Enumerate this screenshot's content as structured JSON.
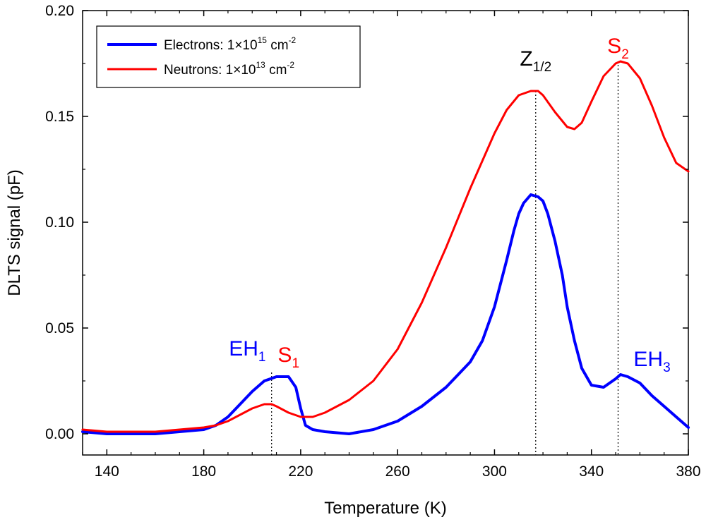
{
  "chart_data": {
    "type": "line",
    "xlabel": "Temperature (K)",
    "ylabel": "DLTS signal (pF)",
    "xlim": [
      130,
      380
    ],
    "ylim": [
      -0.01,
      0.2
    ],
    "xticks": [
      140,
      180,
      220,
      260,
      300,
      340,
      380
    ],
    "xtick_labels": [
      "140",
      "180",
      "220",
      "260",
      "300",
      "340",
      "380"
    ],
    "yticks": [
      0.0,
      0.05,
      0.1,
      0.15,
      0.2
    ],
    "ytick_labels": [
      "0.00",
      "0.05",
      "0.10",
      "0.15",
      "0.20"
    ],
    "grid": false,
    "legend_position": "top-left",
    "series": [
      {
        "name_text": "Electrons: 1×10",
        "name_sup": "15",
        "name_unit": " cm",
        "name_unit_sup": "-2",
        "color": "#0000ff",
        "x": [
          130,
          140,
          150,
          160,
          170,
          180,
          185,
          190,
          195,
          200,
          205,
          210,
          215,
          218,
          220,
          222,
          225,
          230,
          240,
          250,
          260,
          270,
          280,
          285,
          290,
          295,
          300,
          305,
          308,
          310,
          312,
          315,
          318,
          320,
          322,
          325,
          328,
          330,
          333,
          336,
          340,
          345,
          350,
          352,
          355,
          360,
          365,
          370,
          375,
          380
        ],
        "y": [
          0.001,
          0.0,
          0.0,
          0.0,
          0.001,
          0.002,
          0.004,
          0.008,
          0.014,
          0.02,
          0.025,
          0.027,
          0.027,
          0.022,
          0.012,
          0.004,
          0.002,
          0.001,
          0.0,
          0.002,
          0.006,
          0.013,
          0.022,
          0.028,
          0.034,
          0.044,
          0.06,
          0.082,
          0.096,
          0.104,
          0.109,
          0.113,
          0.112,
          0.11,
          0.104,
          0.091,
          0.075,
          0.06,
          0.044,
          0.031,
          0.023,
          0.022,
          0.026,
          0.028,
          0.027,
          0.024,
          0.018,
          0.013,
          0.008,
          0.003
        ]
      },
      {
        "name_text": "Neutrons: 1×10",
        "name_sup": "13",
        "name_unit": " cm",
        "name_unit_sup": "-2",
        "color": "#ff0000",
        "x": [
          130,
          140,
          150,
          160,
          170,
          180,
          185,
          190,
          195,
          200,
          205,
          208,
          210,
          215,
          220,
          225,
          230,
          240,
          250,
          260,
          270,
          280,
          290,
          300,
          305,
          310,
          315,
          318,
          320,
          325,
          330,
          333,
          336,
          340,
          345,
          350,
          352,
          355,
          360,
          365,
          370,
          375,
          380
        ],
        "y": [
          0.002,
          0.001,
          0.001,
          0.001,
          0.002,
          0.003,
          0.004,
          0.006,
          0.009,
          0.012,
          0.014,
          0.014,
          0.013,
          0.01,
          0.008,
          0.008,
          0.01,
          0.016,
          0.025,
          0.04,
          0.062,
          0.088,
          0.116,
          0.142,
          0.153,
          0.16,
          0.162,
          0.162,
          0.16,
          0.152,
          0.145,
          0.144,
          0.147,
          0.157,
          0.169,
          0.175,
          0.176,
          0.175,
          0.168,
          0.155,
          0.14,
          0.128,
          0.124
        ]
      }
    ],
    "reference_lines_x": [
      208,
      317,
      351
    ],
    "annotations": [
      {
        "base": "EH",
        "sub": "1",
        "color": "#0000ff",
        "x": 198,
        "y": 0.037
      },
      {
        "base": "S",
        "sub": "1",
        "color": "#ff0000",
        "x": 215,
        "y": 0.034
      },
      {
        "base": "Z",
        "sub": "1/2",
        "color": "#000000",
        "x": 317,
        "y": 0.174
      },
      {
        "base": "S",
        "sub": "2",
        "color": "#ff0000",
        "x": 351,
        "y": 0.18
      },
      {
        "base": "EH",
        "sub": "3",
        "color": "#0000ff",
        "x": 365,
        "y": 0.032
      }
    ]
  }
}
